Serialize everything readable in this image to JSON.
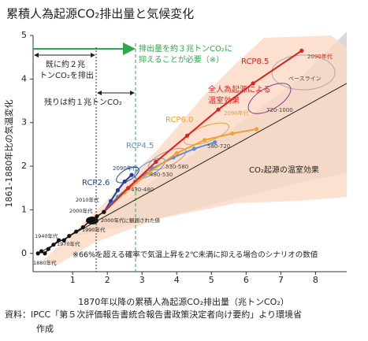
{
  "chart_data": {
    "type": "line",
    "title": "累積人為起源CO₂排出量と気候変化",
    "x_label": "1870年以降の累積人為起源CO₂排出量（兆トンCO₂）",
    "y_label": "1861-1880年比の気温変化",
    "xlim": [
      -0.14,
      8.9
    ],
    "ylim": [
      -0.42,
      5
    ],
    "xticks": [
      1,
      2,
      3,
      4,
      5,
      6,
      7,
      8
    ],
    "yticks": [
      0,
      1,
      2,
      3,
      4,
      5
    ],
    "series": [
      {
        "name": "RCP2.6",
        "color": "#1f3f99",
        "x": [
          1.9,
          2.1,
          2.3,
          2.5,
          2.7
        ],
        "values": [
          0.95,
          1.2,
          1.45,
          1.65,
          1.8
        ]
      },
      {
        "name": "RCP4.5",
        "color": "#5b8fd6",
        "x": [
          1.9,
          2.3,
          2.8,
          3.3,
          3.9,
          4.5,
          5.1
        ],
        "values": [
          0.95,
          1.3,
          1.65,
          1.95,
          2.2,
          2.4,
          2.55
        ]
      },
      {
        "name": "RCP6.0",
        "color": "#f0a030",
        "x": [
          1.9,
          2.5,
          3.2,
          4,
          4.8,
          5.6,
          6.3
        ],
        "values": [
          0.95,
          1.4,
          1.85,
          2.3,
          2.6,
          2.75,
          2.85
        ]
      },
      {
        "name": "RCP8.5",
        "color": "#e0201d",
        "x": [
          1.9,
          2.6,
          3.4,
          4.3,
          5.2,
          6.2,
          7.6
        ],
        "values": [
          0.95,
          1.5,
          2.1,
          2.7,
          3.3,
          3.9,
          4.65
        ]
      }
    ],
    "observed": {
      "color": "#111111",
      "x": [
        0,
        0.1,
        0.2,
        0.3,
        0.45,
        0.6,
        0.75,
        0.9,
        1.1,
        1.3,
        1.5,
        1.7,
        1.9
      ],
      "values": [
        0,
        0.05,
        0,
        0.1,
        0.2,
        0.3,
        0.3,
        0.4,
        0.5,
        0.6,
        0.75,
        0.85,
        0.95
      ]
    },
    "trend_line": {
      "color": "#222222",
      "x": [
        0,
        8.9
      ],
      "values": [
        0,
        3.9
      ]
    },
    "annotations": [
      "排出量を約３兆トンCO₂に",
      "抑えることが必要（※）",
      "既に約２兆",
      "トンCO₂を排出",
      "残りは約１兆トンCO₂",
      "全人為起源による",
      "温室効果",
      "CO₂起源の温室効果",
      "※66%を超える確率で気温上昇を2℃未満に抑える場合のシナリオの数値",
      "2090年代",
      "ベースライン",
      "720-1000",
      "580-720",
      "530-580",
      "480-530",
      "430-480",
      "2090年代",
      "2090年代",
      "2000年代に観測された値",
      "2010年代",
      "2000年代",
      "1990年代",
      "1970年代",
      "1940年代",
      "1880年代"
    ],
    "source": [
      "資料：IPCC「第５次評価報告書統合報告書政策決定者向け要約」より環境省",
      "作成"
    ]
  }
}
